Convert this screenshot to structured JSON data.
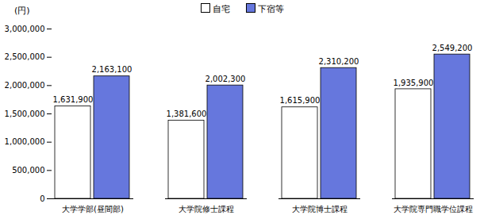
{
  "chart_data": {
    "type": "bar",
    "y_label": "(円)",
    "categories": [
      "大学学部(昼間部)",
      "大学院修士課程",
      "大学院博士課程",
      "大学院専門職学位課程"
    ],
    "series": [
      {
        "name": "自宅",
        "color": "#ffffff",
        "values": [
          1631900,
          1381600,
          1615900,
          1935900
        ],
        "value_labels": [
          "1,631,900",
          "1,381,600",
          "1,615,900",
          "1,935,900"
        ]
      },
      {
        "name": "下宿等",
        "color": "#6677dd",
        "values": [
          2163100,
          2002300,
          2310200,
          2549200
        ],
        "value_labels": [
          "2,163,100",
          "2,002,300",
          "2,310,200",
          "2,549,200"
        ]
      }
    ],
    "ylim": [
      0,
      3000000
    ],
    "yticks": [
      0,
      {
        "value": 500000,
        "label": "500,000"
      },
      {
        "value": 1000000,
        "label": "1,000,000"
      },
      {
        "value": 1500000,
        "label": "1,500,000"
      },
      {
        "value": 2000000,
        "label": "2,000,000"
      },
      {
        "value": 2500000,
        "label": "2,500,000"
      },
      {
        "value": 3000000,
        "label": "3,000,000"
      }
    ],
    "data_labels": true,
    "legend": "top"
  }
}
